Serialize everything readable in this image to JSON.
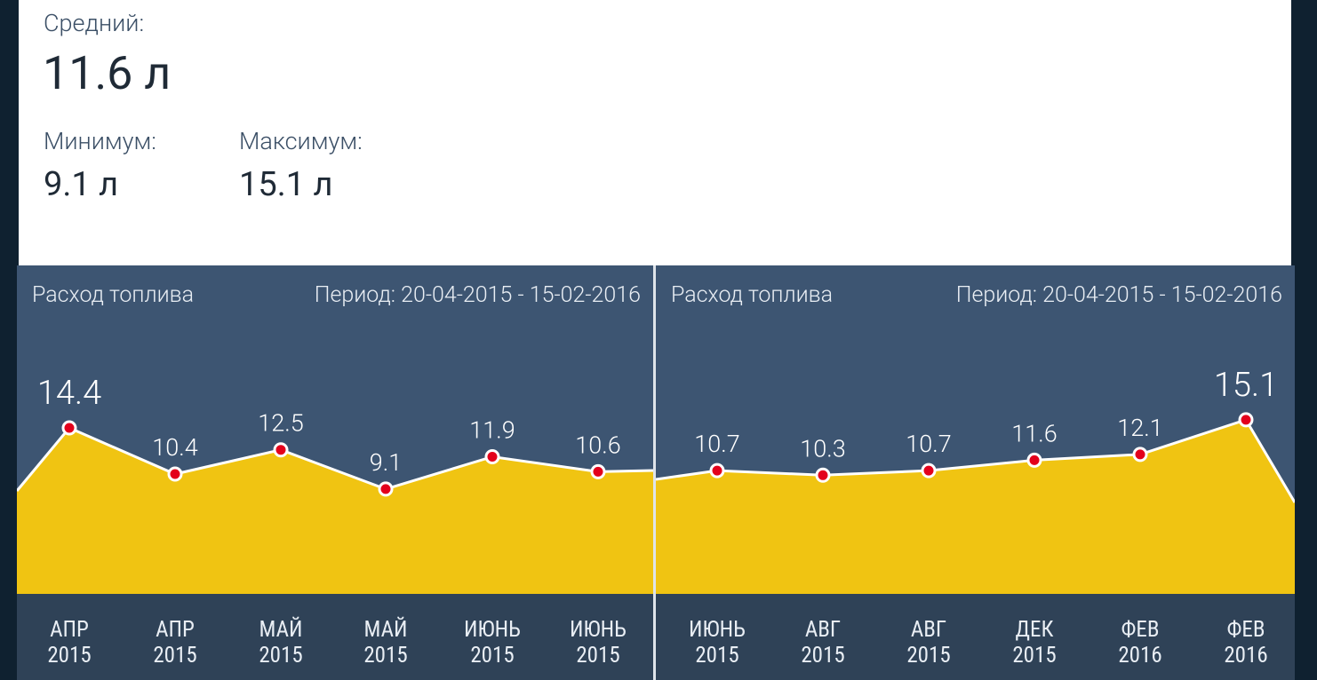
{
  "stats": {
    "average_label": "Средний:",
    "average_value": "11.6 л",
    "min_label": "Минимум:",
    "min_value": "9.1 л",
    "max_label": "Максимум:",
    "max_value": "15.1 л"
  },
  "colors": {
    "area_fill": "#f0c412",
    "line": "#ffffff",
    "point": "#e3001b",
    "panel_bg": "#3d5572",
    "axis_bg": "#2f4257"
  },
  "chart_data": [
    {
      "type": "area",
      "title": "Расход топлива",
      "period": "Период: 20-04-2015 - 15-02-2016",
      "categories": [
        [
          "АПР",
          "2015"
        ],
        [
          "АПР",
          "2015"
        ],
        [
          "МАЙ",
          "2015"
        ],
        [
          "МАЙ",
          "2015"
        ],
        [
          "ИЮНЬ",
          "2015"
        ],
        [
          "ИЮНЬ",
          "2015"
        ]
      ],
      "values": [
        14.4,
        10.4,
        12.5,
        9.1,
        11.9,
        10.6
      ],
      "labels": [
        "14.4",
        "10.4",
        "12.5",
        "9.1",
        "11.9",
        "10.6"
      ],
      "highlight_index": 0,
      "ylim": [
        0,
        16
      ]
    },
    {
      "type": "area",
      "title": "Расход топлива",
      "period": "Период: 20-04-2015 - 15-02-2016",
      "categories": [
        [
          "ИЮНЬ",
          "2015"
        ],
        [
          "АВГ",
          "2015"
        ],
        [
          "АВГ",
          "2015"
        ],
        [
          "ДЕК",
          "2015"
        ],
        [
          "ФЕВ",
          "2016"
        ],
        [
          "ФЕВ",
          "2016"
        ]
      ],
      "values": [
        10.7,
        10.3,
        10.7,
        11.6,
        12.1,
        15.1
      ],
      "labels": [
        "10.7",
        "10.3",
        "10.7",
        "11.6",
        "12.1",
        "15.1"
      ],
      "highlight_index": 5,
      "ylim": [
        0,
        16
      ]
    }
  ]
}
